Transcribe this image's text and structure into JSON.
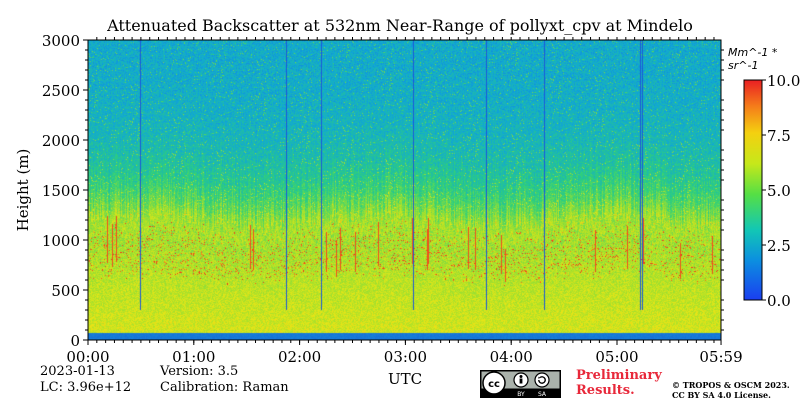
{
  "chart_data": {
    "type": "heatmap",
    "title": "Attenuated Backscatter at 532nm Near-Range of pollyxt_cpv at Mindelo",
    "xlabel": "UTC",
    "ylabel": "Height (m)",
    "x_ticks": [
      "00:00",
      "01:00",
      "02:00",
      "03:00",
      "04:00",
      "05:00",
      "05:59"
    ],
    "y_ticks": [
      "0",
      "500",
      "1000",
      "1500",
      "2000",
      "2500",
      "3000"
    ],
    "xlim_hours": [
      0,
      5.983
    ],
    "ylim": [
      0,
      3000
    ],
    "colorbar": {
      "unit_label": "Mm^-1 * sr^-1",
      "ticks": [
        "0.0",
        "2.5",
        "5.0",
        "7.5",
        "10.0"
      ],
      "range": [
        0,
        10
      ],
      "colormap": [
        "#1e4fd7",
        "#0fa6d8",
        "#2fd07a",
        "#9fe02e",
        "#e8e616",
        "#f7a11a",
        "#ee2a1b"
      ]
    },
    "layers": {
      "aerosol_top_m": 1100,
      "dense_layer_m": [
        300,
        900
      ],
      "surface_blank_m": [
        0,
        80
      ]
    }
  },
  "meta": {
    "date": "2023-01-13",
    "lc": "LC: 3.96e+12",
    "version": "Version: 3.5",
    "calibration": "Calibration: Raman"
  },
  "preliminary": [
    "Preliminary",
    "Results."
  ],
  "license": [
    "© TROPOS & OSCM 2023.",
    "CC BY SA 4.0 License."
  ],
  "badge": [
    "cc",
    "BY",
    "SA"
  ],
  "colors": {
    "text": "#000000",
    "preliminary": "#e8283a"
  }
}
